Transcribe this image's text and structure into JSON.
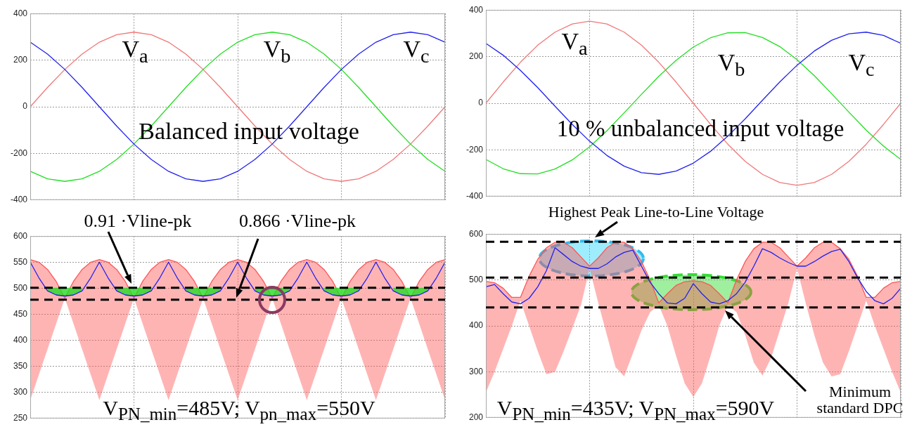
{
  "chart_data": [
    {
      "type": "line",
      "annotations": [
        "V$_{a}$",
        "V$_{b}$",
        "V$_{c}$",
        "Balanced input voltage"
      ],
      "categories": [
        null,
        null,
        null,
        null,
        null,
        null,
        null,
        null,
        null,
        null,
        null,
        null,
        null,
        null,
        null,
        null,
        null,
        null,
        null,
        null,
        null,
        null,
        null,
        null,
        null
      ],
      "series": [
        {
          "color": "#f07878",
          "values": [
            0,
            83,
            160,
            226,
            277,
            309,
            320,
            309,
            277,
            226,
            160,
            83,
            0,
            -83,
            -160,
            -226,
            -277,
            -309,
            -320,
            -309,
            -277,
            -226,
            -160,
            -83,
            0
          ]
        },
        {
          "color": "#22dd22",
          "values": [
            -277,
            -309,
            -320,
            -309,
            -277,
            -226,
            -160,
            -83,
            0,
            83,
            160,
            226,
            277,
            309,
            320,
            309,
            277,
            226,
            160,
            83,
            0,
            -83,
            -160,
            -226,
            -277
          ]
        },
        {
          "color": "#2222ee",
          "values": [
            277,
            226,
            160,
            83,
            0,
            -83,
            -160,
            -226,
            -277,
            -309,
            -320,
            -309,
            -277,
            -226,
            -160,
            -83,
            0,
            83,
            160,
            226,
            277,
            309,
            320,
            309,
            277
          ]
        }
      ],
      "ylim": [
        -400,
        400
      ],
      "yticks": [
        -400,
        -200,
        0,
        200,
        400
      ],
      "grid": true,
      "legend": false,
      "tick_labels": "y"
    },
    {
      "type": "line",
      "annotations": [
        "V$_{a}$",
        "V$_{b}$",
        "V$_{c}$",
        "10 % unbalanced input voltage"
      ],
      "categories": [
        null,
        null,
        null,
        null,
        null,
        null,
        null,
        null,
        null,
        null,
        null,
        null,
        null,
        null,
        null,
        null,
        null,
        null,
        null,
        null,
        null,
        null,
        null,
        null,
        null
      ],
      "series": [
        {
          "color": "#f07878",
          "values": [
            0,
            91,
            176,
            249,
            305,
            340,
            352,
            340,
            305,
            249,
            176,
            91,
            0,
            -91,
            -176,
            -249,
            -305,
            -340,
            -352,
            -340,
            -305,
            -249,
            -176,
            -91,
            0
          ]
        },
        {
          "color": "#22dd22",
          "values": [
            -241,
            -281,
            -302,
            -303,
            -282,
            -243,
            -187,
            -118,
            -41,
            38,
            115,
            184,
            241,
            281,
            302,
            303,
            282,
            243,
            187,
            118,
            41,
            -38,
            -115,
            -184,
            -241
          ]
        },
        {
          "color": "#2222ee",
          "values": [
            257,
            206,
            141,
            67,
            -13,
            -91,
            -163,
            -224,
            -270,
            -298,
            -305,
            -291,
            -257,
            -206,
            -141,
            -67,
            13,
            91,
            163,
            224,
            270,
            298,
            305,
            291,
            257
          ]
        }
      ],
      "ylim": [
        -400,
        400
      ],
      "yticks": [
        -400,
        -200,
        0,
        200,
        400
      ],
      "grid": true,
      "legend": false,
      "tick_labels": "y"
    },
    {
      "type": "line",
      "annotations": [
        "0.91 ·Vline-pk",
        "0.866 ·Vline-pk",
        "V$_{PN_min}$=485V; V$_{pn_max}$=550V"
      ],
      "categories": [
        null,
        null,
        null,
        null,
        null,
        null,
        null,
        null,
        null,
        null,
        null,
        null,
        null,
        null,
        null,
        null,
        null,
        null,
        null,
        null,
        null,
        null,
        null,
        null,
        null,
        null,
        null,
        null,
        null,
        null,
        null,
        null,
        null,
        null,
        null,
        null,
        null,
        null,
        null,
        null,
        null,
        null,
        null,
        null,
        null,
        null,
        null,
        null,
        null
      ],
      "series": [
        {
          "color": "#ff5555",
          "values": [
            555,
            550,
            536,
            513,
            481,
            513,
            536,
            550,
            555,
            550,
            536,
            513,
            481,
            513,
            536,
            550,
            555,
            550,
            536,
            513,
            481,
            513,
            536,
            550,
            555,
            550,
            536,
            513,
            481,
            513,
            536,
            550,
            555,
            550,
            536,
            513,
            481,
            513,
            536,
            550,
            555,
            550,
            536,
            513,
            481,
            513,
            536,
            550,
            555
          ],
          "lower": [
            285,
            334,
            383,
            432,
            481,
            432,
            383,
            334,
            285,
            334,
            383,
            432,
            481,
            432,
            383,
            334,
            285,
            334,
            383,
            432,
            481,
            432,
            383,
            334,
            285,
            334,
            383,
            432,
            481,
            432,
            383,
            334,
            285,
            334,
            383,
            432,
            481,
            432,
            383,
            334,
            285,
            334,
            383,
            432,
            481,
            432,
            383,
            334,
            285
          ],
          "upper": [
            555,
            550,
            536,
            513,
            481,
            513,
            536,
            550,
            555,
            550,
            536,
            513,
            481,
            513,
            536,
            550,
            555,
            550,
            536,
            513,
            481,
            513,
            536,
            550,
            555,
            550,
            536,
            513,
            481,
            513,
            536,
            550,
            555,
            550,
            536,
            513,
            481,
            513,
            536,
            550,
            555,
            550,
            536,
            513,
            481,
            513,
            536,
            550,
            555
          ]
        },
        {
          "type": "area",
          "color": "#22dd22",
          "values": [
            null,
            null,
            501,
            501,
            501,
            501,
            501,
            null,
            null,
            null,
            501,
            501,
            501,
            501,
            501,
            null,
            null,
            null,
            501,
            501,
            501,
            501,
            501,
            null,
            null,
            null,
            501,
            501,
            501,
            501,
            501,
            null,
            null,
            null,
            501,
            501,
            501,
            501,
            501,
            null,
            null,
            null,
            501,
            501,
            501,
            501,
            501,
            null,
            null
          ]
        },
        {
          "color": "#2222ee",
          "values": [
            550,
            520,
            495,
            487,
            485,
            487,
            495,
            520,
            550,
            520,
            495,
            487,
            485,
            487,
            495,
            520,
            550,
            520,
            495,
            487,
            485,
            487,
            495,
            520,
            550,
            520,
            495,
            487,
            485,
            487,
            495,
            520,
            550,
            520,
            495,
            487,
            485,
            487,
            495,
            520,
            550,
            520,
            495,
            487,
            485,
            487,
            495,
            520,
            550
          ]
        }
      ],
      "ref_lines": [
        {
          "axis": "y",
          "value": 501,
          "color": "#000000",
          "line_style": "dashed"
        },
        {
          "axis": "y",
          "value": 478,
          "color": "#000000",
          "line_style": "dashed"
        }
      ],
      "ylim": [
        250,
        600
      ],
      "yticks": [
        250,
        300,
        350,
        400,
        450,
        500,
        550,
        600
      ],
      "grid": true,
      "legend": false,
      "tick_labels": "y"
    },
    {
      "type": "line",
      "annotations": [
        "Highest Peak Line-to-Line Voltage",
        "Minimum standard DPC",
        "V$_{PN_min}$=435V; V$_{PN_max}$=590V"
      ],
      "categories": [
        null,
        null,
        null,
        null,
        null,
        null,
        null,
        null,
        null,
        null,
        null,
        null,
        null,
        null,
        null,
        null,
        null,
        null,
        null,
        null,
        null,
        null,
        null,
        null,
        null,
        null,
        null,
        null,
        null,
        null,
        null,
        null,
        null,
        null,
        null,
        null,
        null,
        null,
        null,
        null,
        null,
        null,
        null,
        null,
        null,
        null,
        null,
        null,
        null
      ],
      "series": [
        {
          "color": "#ff5555",
          "values": [
            497,
            494,
            482,
            462,
            462,
            508,
            545,
            570,
            582,
            582,
            570,
            550,
            530,
            548,
            570,
            582,
            582,
            568,
            540,
            500,
            450,
            470,
            488,
            496,
            498,
            496,
            488,
            470,
            450,
            500,
            540,
            568,
            582,
            582,
            570,
            550,
            530,
            548,
            570,
            582,
            582,
            568,
            545,
            508,
            462,
            462,
            482,
            494,
            497
          ],
          "lower": [
            255,
            300,
            350,
            400,
            455,
            400,
            345,
            295,
            300,
            345,
            395,
            445,
            525,
            450,
            380,
            310,
            290,
            340,
            390,
            430,
            445,
            400,
            335,
            275,
            245,
            275,
            335,
            400,
            445,
            430,
            380,
            320,
            292,
            330,
            390,
            450,
            525,
            450,
            380,
            320,
            290,
            295,
            345,
            400,
            455,
            400,
            350,
            300,
            255
          ],
          "upper": [
            497,
            494,
            482,
            462,
            462,
            508,
            545,
            570,
            582,
            582,
            570,
            550,
            530,
            548,
            570,
            582,
            582,
            568,
            540,
            500,
            450,
            470,
            488,
            496,
            498,
            496,
            488,
            470,
            450,
            500,
            540,
            568,
            582,
            582,
            570,
            550,
            530,
            548,
            570,
            582,
            582,
            568,
            545,
            508,
            462,
            462,
            482,
            494,
            497
          ]
        },
        {
          "color": "#2222ee",
          "values": [
            485,
            490,
            470,
            452,
            448,
            460,
            485,
            520,
            570,
            555,
            540,
            530,
            525,
            525,
            535,
            550,
            560,
            565,
            530,
            495,
            470,
            450,
            448,
            460,
            492,
            470,
            452,
            448,
            455,
            470,
            495,
            530,
            568,
            560,
            548,
            538,
            530,
            530,
            540,
            552,
            562,
            567,
            540,
            505,
            475,
            455,
            448,
            460,
            482
          ]
        }
      ],
      "ref_lines": [
        {
          "axis": "y",
          "value": 583,
          "color": "#000000",
          "line_style": "dashed"
        },
        {
          "axis": "y",
          "value": 505,
          "color": "#000000",
          "line_style": "dashed"
        },
        {
          "axis": "y",
          "value": 440,
          "color": "#000000",
          "line_style": "dashed"
        }
      ],
      "ylim": [
        200,
        600
      ],
      "yticks": [
        200,
        300,
        400,
        500,
        600
      ],
      "grid": true,
      "legend": false,
      "tick_labels": "y"
    }
  ]
}
